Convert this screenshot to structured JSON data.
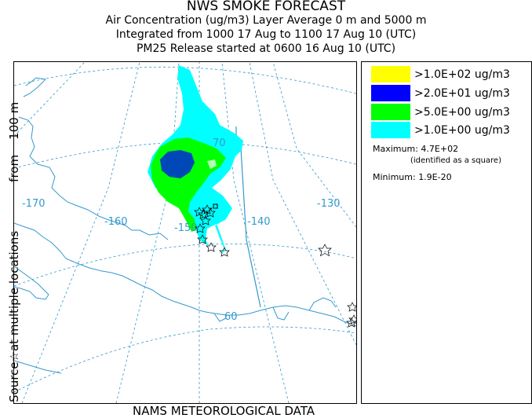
{
  "title": {
    "line1": "NWS SMOKE FORECAST",
    "line2": "Air Concentration (ug/m3) Layer Average    0 m and  5000 m",
    "line3": "Integrated from 1000 17 Aug to 1100 17 Aug 10 (UTC)",
    "line4": "PM25 Release started at 0600 16 Aug 10 (UTC)"
  },
  "side_label": {
    "part1": "Source ",
    "part2": " at multiple locations",
    "part3": "from",
    "part4": "100 m",
    "star_glyph": "☆"
  },
  "footer": "NAMS METEOROLOGICAL DATA",
  "map": {
    "longitude_labels": [
      "-170",
      "-160",
      "-150",
      "-140",
      "-130"
    ],
    "latitude_labels": [
      "70",
      "60"
    ],
    "colors": {
      "coast": "#3399cc",
      "grid": "#3399cc",
      "level_1": "#00ffff",
      "level_5": "#00ff00",
      "level_20": "#0000ff",
      "level_100": "#ffff00"
    }
  },
  "legend": {
    "levels": [
      {
        "label": ">1.0E+02 ug/m3",
        "color": "#ffff00"
      },
      {
        "label": ">2.0E+01 ug/m3",
        "color": "#0000ff"
      },
      {
        "label": ">5.0E+00 ug/m3",
        "color": "#00ff00"
      },
      {
        "label": ">1.0E+00 ug/m3",
        "color": "#00ffff"
      }
    ],
    "maximum_label": "Maximum:",
    "maximum_value": "4.7E+02",
    "maximum_note": "(identified as a square)",
    "minimum_label": "Minimum:",
    "minimum_value": "1.9E-20"
  }
}
